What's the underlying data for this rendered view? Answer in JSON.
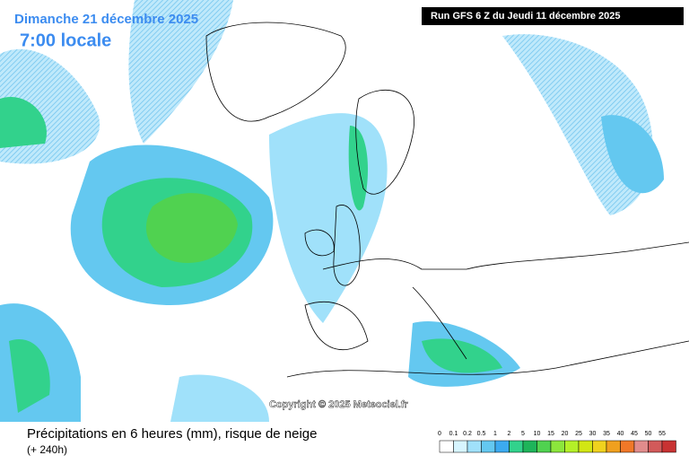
{
  "header": {
    "date": "Dimanche 21 décembre 2025",
    "time": "7:00 locale",
    "run": "Run GFS 6 Z du Jeudi 11 décembre 2025"
  },
  "map": {
    "copyright": "Copyright © 2025 Meteociel.fr"
  },
  "footer": {
    "title": "Précipitations en 6 heures (mm), risque de neige",
    "lead": "(+ 240h)"
  },
  "legend": {
    "items": [
      {
        "label": "0",
        "color": "#ffffff"
      },
      {
        "label": "0.1",
        "color": "#d7f5ff"
      },
      {
        "label": "0.2",
        "color": "#a0e1fa"
      },
      {
        "label": "0.5",
        "color": "#64c8f0"
      },
      {
        "label": "1",
        "color": "#3caaf0"
      },
      {
        "label": "2",
        "color": "#32d28c"
      },
      {
        "label": "5",
        "color": "#1eb45a"
      },
      {
        "label": "10",
        "color": "#50d250"
      },
      {
        "label": "15",
        "color": "#8ce63c"
      },
      {
        "label": "20",
        "color": "#b4f028"
      },
      {
        "label": "25",
        "color": "#d2e614"
      },
      {
        "label": "30",
        "color": "#f0d21e"
      },
      {
        "label": "35",
        "color": "#f0a01e"
      },
      {
        "label": "40",
        "color": "#f07828"
      },
      {
        "label": "45",
        "color": "#e18c8c"
      },
      {
        "label": "50",
        "color": "#d25a5a"
      },
      {
        "label": "55",
        "color": "#c83232"
      }
    ]
  }
}
